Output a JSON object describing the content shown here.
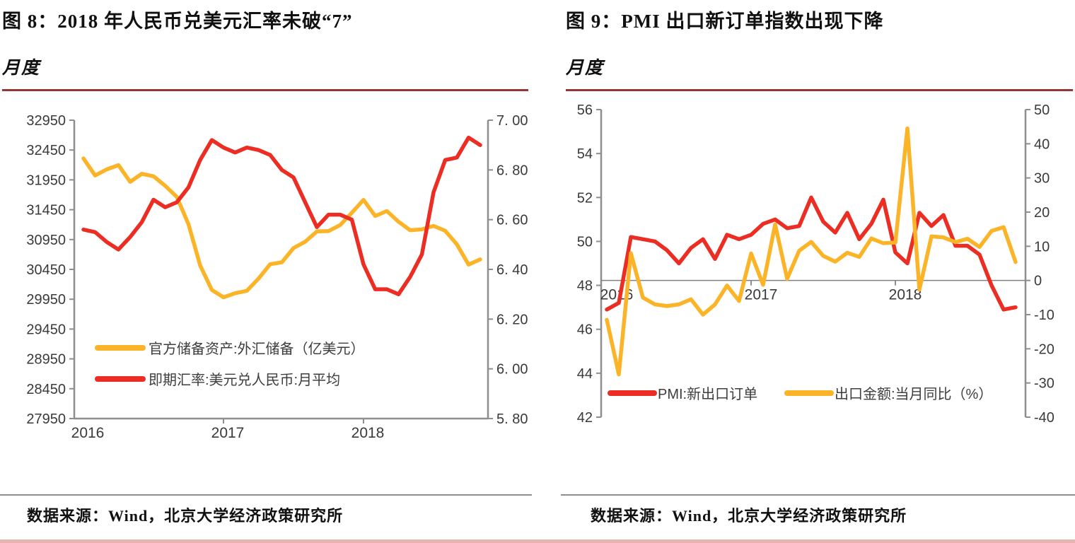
{
  "colors": {
    "series_red": "#ec2d23",
    "series_yellow": "#fbb428",
    "title_rule_dark_red": "#943634",
    "axis_gray": "#8e8e8e",
    "zero_line_gray": "#808080",
    "tick_text_gray": "#3a3a3a",
    "bottom_strip_pink": "#e6b5b2"
  },
  "left_panel": {
    "title": "图 8：2018 年人民币兑美元汇率未破“7”",
    "subtitle": "月度",
    "source": "数据来源：Wind，北京大学经济政策研究所"
  },
  "right_panel": {
    "title": "图 9：PMI 出口新订单指数出现下降",
    "subtitle": "月度",
    "source": "数据来源：Wind，北京大学经济政策研究所"
  },
  "chart_data": [
    {
      "type": "line",
      "title": "图 8：2018 年人民币兑美元汇率未破“7”",
      "frequency_note": "月度",
      "x_months": [
        "2016-01",
        "2016-02",
        "2016-03",
        "2016-04",
        "2016-05",
        "2016-06",
        "2016-07",
        "2016-08",
        "2016-09",
        "2016-10",
        "2016-11",
        "2016-12",
        "2017-01",
        "2017-02",
        "2017-03",
        "2017-04",
        "2017-05",
        "2017-06",
        "2017-07",
        "2017-08",
        "2017-09",
        "2017-10",
        "2017-11",
        "2017-12",
        "2018-01",
        "2018-02",
        "2018-03",
        "2018-04",
        "2018-05",
        "2018-06",
        "2018-07",
        "2018-08",
        "2018-09",
        "2018-10",
        "2018-11"
      ],
      "x_tick_labels": [
        "2016",
        "2017",
        "2018"
      ],
      "left_axis": {
        "min": 27950,
        "max": 32950,
        "step": 500,
        "tick_values": [
          32950,
          32450,
          31950,
          31450,
          30950,
          30450,
          29950,
          29450,
          28950,
          28450,
          27950
        ],
        "tick_labels": [
          "32950",
          "32450",
          "31950",
          "31450",
          "30950",
          "30450",
          "29950",
          "29450",
          "28950",
          "28450",
          "27950"
        ]
      },
      "right_axis": {
        "min": 5.8,
        "max": 7.0,
        "step": 0.2,
        "tick_values": [
          7.0,
          6.8,
          6.6,
          6.4,
          6.2,
          6.0,
          5.8
        ],
        "tick_labels": [
          "7. 00",
          "6. 80",
          "6. 60",
          "6. 40",
          "6. 20",
          "6. 00",
          "5. 80"
        ]
      },
      "grid": false,
      "legend_position": "inside lower-left, stacked",
      "series": [
        {
          "name": "官方储备资产:外汇储备（亿美元）",
          "axis": "left",
          "color": "#fbb428",
          "values": [
            32309,
            32023,
            32126,
            32197,
            31917,
            32052,
            32011,
            31852,
            31664,
            31207,
            30516,
            30105,
            29982,
            30051,
            30091,
            30295,
            30536,
            30568,
            30807,
            30915,
            31085,
            31092,
            31193,
            31399,
            31615,
            31345,
            31428,
            31249,
            31106,
            31121,
            31179,
            31097,
            30870,
            30531,
            30617
          ]
        },
        {
          "name": "即期汇率:美元兑人民币:月平均",
          "axis": "right",
          "color": "#ec2d23",
          "values": [
            6.56,
            6.55,
            6.51,
            6.48,
            6.53,
            6.59,
            6.68,
            6.65,
            6.67,
            6.73,
            6.84,
            6.92,
            6.89,
            6.87,
            6.89,
            6.88,
            6.86,
            6.8,
            6.77,
            6.67,
            6.57,
            6.62,
            6.62,
            6.6,
            6.42,
            6.32,
            6.32,
            6.3,
            6.37,
            6.46,
            6.71,
            6.84,
            6.85,
            6.93,
            6.9
          ]
        }
      ]
    },
    {
      "type": "line",
      "title": "图 9：PMI 出口新订单指数出现下降",
      "frequency_note": "月度",
      "x_months": [
        "2016-01",
        "2016-02",
        "2016-03",
        "2016-04",
        "2016-05",
        "2016-06",
        "2016-07",
        "2016-08",
        "2016-09",
        "2016-10",
        "2016-11",
        "2016-12",
        "2017-01",
        "2017-02",
        "2017-03",
        "2017-04",
        "2017-05",
        "2017-06",
        "2017-07",
        "2017-08",
        "2017-09",
        "2017-10",
        "2017-11",
        "2017-12",
        "2018-01",
        "2018-02",
        "2018-03",
        "2018-04",
        "2018-05",
        "2018-06",
        "2018-07",
        "2018-08",
        "2018-09",
        "2018-10",
        "2018-11"
      ],
      "x_tick_labels": [
        "2016",
        "2017",
        "2018"
      ],
      "left_axis": {
        "min": 42,
        "max": 56,
        "step": 2,
        "tick_values": [
          56,
          54,
          52,
          50,
          48,
          46,
          44,
          42
        ],
        "tick_labels": [
          "56",
          "54",
          "52",
          "50",
          "48",
          "46",
          "44",
          "42"
        ]
      },
      "right_axis": {
        "min": -40,
        "max": 50,
        "step": 10,
        "tick_values": [
          50,
          40,
          30,
          20,
          10,
          0,
          -10,
          -20,
          -30,
          -40
        ],
        "tick_labels": [
          "50",
          "40",
          "30",
          "20",
          "10",
          "0",
          "-10",
          "-20",
          "-30",
          "-40"
        ]
      },
      "zero_line_on_right_axis": true,
      "grid": false,
      "legend_position": "inside bottom, single row",
      "series": [
        {
          "name": "PMI:新出口订单",
          "axis": "left",
          "color": "#ec2d23",
          "values": [
            46.9,
            47.2,
            50.2,
            50.1,
            50.0,
            49.6,
            49.0,
            49.7,
            50.1,
            49.2,
            50.3,
            50.1,
            50.3,
            50.8,
            51.0,
            50.6,
            50.7,
            52.0,
            50.9,
            50.4,
            51.3,
            50.1,
            50.8,
            51.9,
            49.5,
            49.0,
            51.3,
            50.7,
            51.2,
            49.8,
            49.8,
            49.4,
            48.0,
            46.9,
            47.0
          ]
        },
        {
          "name": "出口金额:当月同比（%）",
          "axis": "right",
          "color": "#fbb428",
          "values": [
            -11.5,
            -27.5,
            8.0,
            -5.0,
            -7.0,
            -7.5,
            -7.0,
            -5.5,
            -10.0,
            -7.0,
            -1.5,
            -6.0,
            7.9,
            -1.3,
            16.4,
            0.5,
            8.7,
            11.3,
            7.2,
            5.5,
            8.1,
            6.9,
            12.3,
            10.9,
            11.1,
            44.5,
            -2.7,
            12.9,
            12.6,
            11.2,
            12.2,
            9.8,
            14.5,
            15.6,
            5.4
          ]
        }
      ]
    }
  ]
}
